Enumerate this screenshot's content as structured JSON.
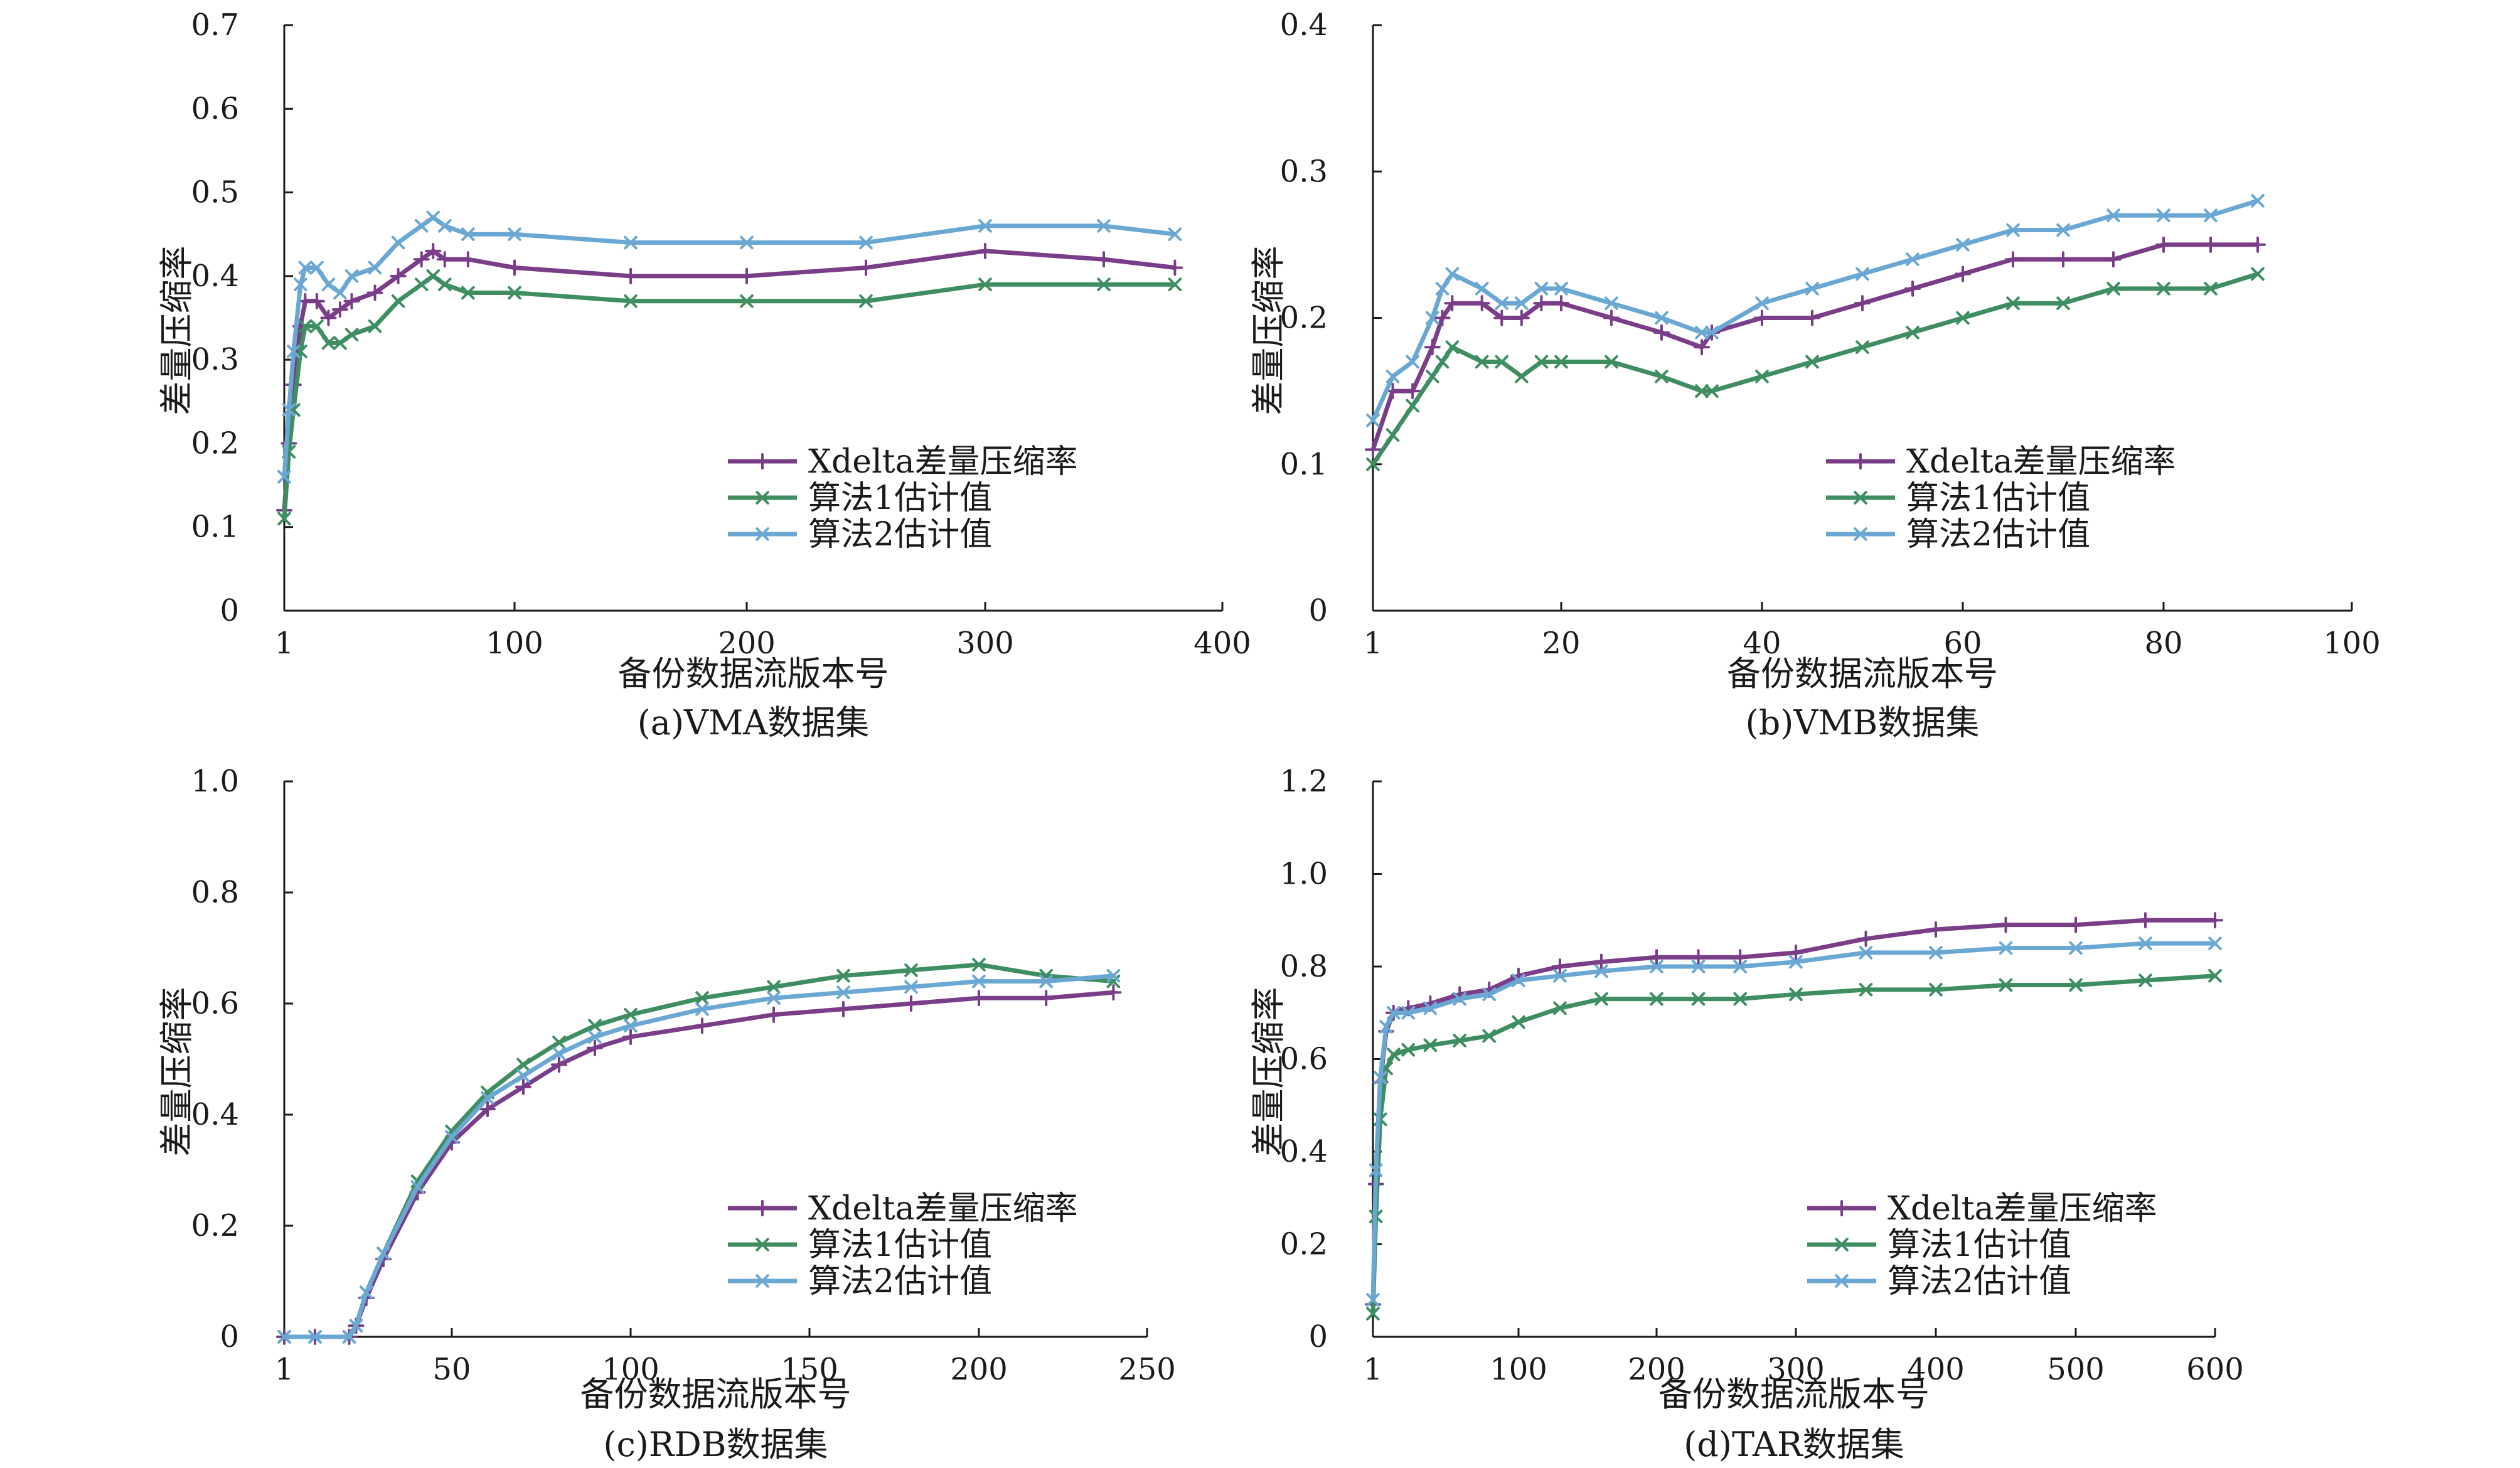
{
  "colors": {
    "xdelta": "#7a3d88",
    "algo1": "#3e8e62",
    "algo2": "#6aa8d3",
    "axis": "#1a1a1a"
  },
  "chart_data": [
    {
      "type": "line",
      "caption": "(a)VMA数据集",
      "xlabel": "备份数据流版本号",
      "ylabel": "差量压缩率",
      "xlim": [
        1,
        400
      ],
      "ylim": [
        0,
        0.7
      ],
      "xticks": [
        1,
        100,
        200,
        300,
        400
      ],
      "xtick_labels": [
        "1",
        "100",
        "200",
        "300",
        "400"
      ],
      "yticks": [
        0,
        0.1,
        0.2,
        0.3,
        0.4,
        0.5,
        0.6,
        0.7
      ],
      "ytick_labels": [
        "0",
        "0.1",
        "0.2",
        "0.3",
        "0.4",
        "0.5",
        "0.6",
        "0.7"
      ],
      "legend_position": "lower-right",
      "series": [
        {
          "name": "Xdelta差量压缩率",
          "key": "xdelta",
          "marker": "plus",
          "x": [
            1,
            3,
            5,
            8,
            10,
            15,
            20,
            25,
            30,
            40,
            50,
            60,
            65,
            70,
            80,
            100,
            150,
            200,
            250,
            300,
            350,
            380
          ],
          "y": [
            0.12,
            0.2,
            0.27,
            0.34,
            0.37,
            0.37,
            0.35,
            0.36,
            0.37,
            0.38,
            0.4,
            0.42,
            0.43,
            0.42,
            0.42,
            0.41,
            0.4,
            0.4,
            0.41,
            0.43,
            0.42,
            0.41
          ]
        },
        {
          "name": "算法1估计值",
          "key": "algo1",
          "marker": "cross",
          "x": [
            1,
            3,
            5,
            8,
            10,
            15,
            20,
            25,
            30,
            40,
            50,
            60,
            65,
            70,
            80,
            100,
            150,
            200,
            250,
            300,
            350,
            380
          ],
          "y": [
            0.11,
            0.19,
            0.24,
            0.31,
            0.34,
            0.34,
            0.32,
            0.32,
            0.33,
            0.34,
            0.37,
            0.39,
            0.4,
            0.39,
            0.38,
            0.38,
            0.37,
            0.37,
            0.37,
            0.39,
            0.39,
            0.39
          ]
        },
        {
          "name": "算法2估计值",
          "key": "algo2",
          "marker": "cross",
          "x": [
            1,
            3,
            5,
            8,
            10,
            15,
            20,
            25,
            30,
            40,
            50,
            60,
            65,
            70,
            80,
            100,
            150,
            200,
            250,
            300,
            350,
            380
          ],
          "y": [
            0.16,
            0.24,
            0.31,
            0.39,
            0.41,
            0.41,
            0.39,
            0.38,
            0.4,
            0.41,
            0.44,
            0.46,
            0.47,
            0.46,
            0.45,
            0.45,
            0.44,
            0.44,
            0.44,
            0.46,
            0.46,
            0.45
          ]
        }
      ]
    },
    {
      "type": "line",
      "caption": "(b)VMB数据集",
      "xlabel": "备份数据流版本号",
      "ylabel": "差量压缩率",
      "xlim": [
        1,
        100
      ],
      "ylim": [
        0,
        0.4
      ],
      "xticks": [
        1,
        20,
        40,
        60,
        80,
        100
      ],
      "xtick_labels": [
        "1",
        "20",
        "40",
        "60",
        "80",
        "100"
      ],
      "yticks": [
        0,
        0.1,
        0.2,
        0.3,
        0.4
      ],
      "ytick_labels": [
        "0",
        "0.1",
        "0.2",
        "0.3",
        "0.4"
      ],
      "legend_position": "lower-right",
      "series": [
        {
          "name": "Xdelta差量压缩率",
          "key": "xdelta",
          "marker": "plus",
          "x": [
            1,
            3,
            5,
            7,
            8,
            9,
            12,
            14,
            16,
            18,
            20,
            25,
            30,
            34,
            35,
            40,
            45,
            50,
            55,
            60,
            65,
            70,
            75,
            80,
            85,
            90
          ],
          "y": [
            0.11,
            0.15,
            0.15,
            0.18,
            0.2,
            0.21,
            0.21,
            0.2,
            0.2,
            0.21,
            0.21,
            0.2,
            0.19,
            0.18,
            0.19,
            0.2,
            0.2,
            0.21,
            0.22,
            0.23,
            0.24,
            0.24,
            0.24,
            0.25,
            0.25,
            0.25
          ]
        },
        {
          "name": "算法1估计值",
          "key": "algo1",
          "marker": "cross",
          "x": [
            1,
            3,
            5,
            7,
            8,
            9,
            12,
            14,
            16,
            18,
            20,
            25,
            30,
            34,
            35,
            40,
            45,
            50,
            55,
            60,
            65,
            70,
            75,
            80,
            85,
            90
          ],
          "y": [
            0.1,
            0.12,
            0.14,
            0.16,
            0.17,
            0.18,
            0.17,
            0.17,
            0.16,
            0.17,
            0.17,
            0.17,
            0.16,
            0.15,
            0.15,
            0.16,
            0.17,
            0.18,
            0.19,
            0.2,
            0.21,
            0.21,
            0.22,
            0.22,
            0.22,
            0.23
          ]
        },
        {
          "name": "算法2估计值",
          "key": "algo2",
          "marker": "cross",
          "x": [
            1,
            3,
            5,
            7,
            8,
            9,
            12,
            14,
            16,
            18,
            20,
            25,
            30,
            34,
            35,
            40,
            45,
            50,
            55,
            60,
            65,
            70,
            75,
            80,
            85,
            90
          ],
          "y": [
            0.13,
            0.16,
            0.17,
            0.2,
            0.22,
            0.23,
            0.22,
            0.21,
            0.21,
            0.22,
            0.22,
            0.21,
            0.2,
            0.19,
            0.19,
            0.21,
            0.22,
            0.23,
            0.24,
            0.25,
            0.26,
            0.26,
            0.27,
            0.27,
            0.27,
            0.28
          ]
        }
      ]
    },
    {
      "type": "line",
      "caption": "(c)RDB数据集",
      "xlabel": "备份数据流版本号",
      "ylabel": "差量压缩率",
      "xlim": [
        1,
        250
      ],
      "ylim": [
        0,
        1.0
      ],
      "xticks": [
        1,
        50,
        100,
        150,
        200,
        250
      ],
      "xtick_labels": [
        "1",
        "50",
        "100",
        "150",
        "200",
        "250"
      ],
      "yticks": [
        0,
        0.2,
        0.4,
        0.6,
        0.8,
        1.0
      ],
      "ytick_labels": [
        "0",
        "0.2",
        "0.4",
        "0.6",
        "0.8",
        "1.0"
      ],
      "legend_position": "lower-right",
      "series": [
        {
          "name": "Xdelta差量压缩率",
          "key": "xdelta",
          "marker": "plus",
          "x": [
            1,
            10,
            20,
            22,
            25,
            30,
            40,
            50,
            60,
            70,
            80,
            90,
            100,
            120,
            140,
            160,
            180,
            200,
            220,
            240
          ],
          "y": [
            0,
            0,
            0,
            0.02,
            0.07,
            0.14,
            0.26,
            0.35,
            0.41,
            0.45,
            0.49,
            0.52,
            0.54,
            0.56,
            0.58,
            0.59,
            0.6,
            0.61,
            0.61,
            0.62
          ]
        },
        {
          "name": "算法1估计值",
          "key": "algo1",
          "marker": "cross",
          "x": [
            1,
            10,
            20,
            22,
            25,
            30,
            40,
            50,
            60,
            70,
            80,
            90,
            100,
            120,
            140,
            160,
            180,
            200,
            220,
            240
          ],
          "y": [
            0,
            0,
            0,
            0.02,
            0.08,
            0.15,
            0.28,
            0.37,
            0.44,
            0.49,
            0.53,
            0.56,
            0.58,
            0.61,
            0.63,
            0.65,
            0.66,
            0.67,
            0.65,
            0.64
          ]
        },
        {
          "name": "算法2估计值",
          "key": "algo2",
          "marker": "cross",
          "x": [
            1,
            10,
            20,
            22,
            25,
            30,
            40,
            50,
            60,
            70,
            80,
            90,
            100,
            120,
            140,
            160,
            180,
            200,
            220,
            240
          ],
          "y": [
            0,
            0,
            0,
            0.02,
            0.08,
            0.15,
            0.27,
            0.36,
            0.43,
            0.47,
            0.51,
            0.54,
            0.56,
            0.59,
            0.61,
            0.62,
            0.63,
            0.64,
            0.64,
            0.65
          ]
        }
      ]
    },
    {
      "type": "line",
      "caption": "(d)TAR数据集",
      "xlabel": "备份数据流版本号",
      "ylabel": "差量压缩率",
      "xlim": [
        1,
        600
      ],
      "ylim": [
        0,
        1.2
      ],
      "x_scale_note": "non-uniform",
      "xticks": [
        1,
        100,
        200,
        300,
        400,
        500,
        600
      ],
      "xtick_labels": [
        "1",
        "100",
        "200",
        "300",
        "400",
        "500",
        "600"
      ],
      "yticks": [
        0,
        0.2,
        0.4,
        0.6,
        0.8,
        1.0,
        1.2
      ],
      "ytick_labels": [
        "0",
        "0.2",
        "0.4",
        "0.6",
        "0.8",
        "1.0",
        "1.2"
      ],
      "legend_position": "lower-right",
      "series": [
        {
          "name": "Xdelta差量压缩率",
          "key": "xdelta",
          "marker": "plus",
          "x": [
            1,
            3,
            6,
            10,
            15,
            25,
            40,
            60,
            80,
            100,
            130,
            160,
            200,
            230,
            260,
            300,
            350,
            400,
            450,
            500,
            550,
            600
          ],
          "y": [
            0.07,
            0.33,
            0.55,
            0.66,
            0.7,
            0.71,
            0.72,
            0.74,
            0.75,
            0.78,
            0.8,
            0.81,
            0.82,
            0.82,
            0.82,
            0.83,
            0.86,
            0.88,
            0.89,
            0.89,
            0.9,
            0.9
          ]
        },
        {
          "name": "算法1估计值",
          "key": "algo1",
          "marker": "cross",
          "x": [
            1,
            3,
            6,
            10,
            15,
            25,
            40,
            60,
            80,
            100,
            130,
            160,
            200,
            230,
            260,
            300,
            350,
            400,
            450,
            500,
            550,
            600
          ],
          "y": [
            0.05,
            0.26,
            0.47,
            0.58,
            0.61,
            0.62,
            0.63,
            0.64,
            0.65,
            0.68,
            0.71,
            0.73,
            0.73,
            0.73,
            0.73,
            0.74,
            0.75,
            0.75,
            0.76,
            0.76,
            0.77,
            0.78
          ]
        },
        {
          "name": "算法2估计值",
          "key": "algo2",
          "marker": "cross",
          "x": [
            1,
            3,
            6,
            10,
            15,
            25,
            40,
            60,
            80,
            100,
            130,
            160,
            200,
            230,
            260,
            300,
            350,
            400,
            450,
            500,
            550,
            600
          ],
          "y": [
            0.08,
            0.36,
            0.56,
            0.67,
            0.7,
            0.7,
            0.71,
            0.73,
            0.74,
            0.77,
            0.78,
            0.79,
            0.8,
            0.8,
            0.8,
            0.81,
            0.83,
            0.83,
            0.84,
            0.84,
            0.85,
            0.85
          ]
        }
      ]
    }
  ]
}
